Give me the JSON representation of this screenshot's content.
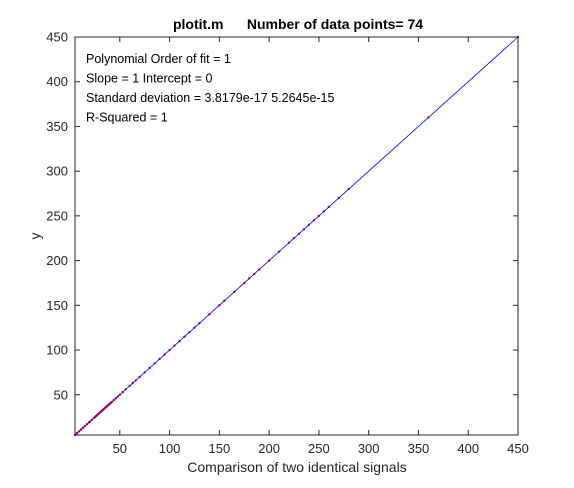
{
  "chart_data": {
    "type": "scatter",
    "title": "plotit.m      Number of data points= 74",
    "xlabel": "Comparison of two identical signals",
    "ylabel": "y",
    "xlim": [
      5,
      450
    ],
    "ylim": [
      5,
      450
    ],
    "xticks": [
      50,
      100,
      150,
      200,
      250,
      300,
      350,
      400,
      450
    ],
    "yticks": [
      50,
      100,
      150,
      200,
      250,
      300,
      350,
      400,
      450
    ],
    "grid": false,
    "colors": {
      "points": "#990066",
      "fit_line": "#0000ff",
      "axes": "#262626"
    },
    "annotations": [
      "Polynomial Order of fit = 1",
      "Slope = 1    Intercept = 0",
      "Standard deviation = 3.8179e-17  5.2645e-15",
      "R-Squared = 1"
    ],
    "fit": {
      "slope": 1,
      "intercept": 0,
      "from": 5,
      "to": 450
    },
    "series": [
      {
        "x": [
          5,
          7,
          9,
          11,
          13,
          15,
          17,
          19,
          20,
          22,
          24,
          25,
          26,
          27,
          28,
          29,
          30,
          31,
          32,
          33,
          34,
          35,
          36,
          37,
          38,
          39,
          40,
          41,
          42,
          44,
          46,
          48,
          50,
          53,
          56,
          60,
          63,
          66,
          70,
          75,
          80,
          85,
          90,
          95,
          100,
          105,
          110,
          115,
          120,
          125,
          130,
          140,
          150,
          155,
          165,
          175,
          180,
          185,
          190,
          200,
          210,
          220,
          225,
          230,
          235,
          240,
          245,
          250,
          255,
          260,
          270,
          280,
          360,
          450
        ],
        "y": [
          5,
          7,
          9,
          11,
          13,
          15,
          17,
          19,
          20,
          22,
          24,
          25,
          26,
          27,
          28,
          29,
          30,
          31,
          32,
          33,
          34,
          35,
          36,
          37,
          38,
          39,
          40,
          41,
          42,
          44,
          46,
          48,
          50,
          53,
          56,
          60,
          63,
          66,
          70,
          75,
          80,
          85,
          90,
          95,
          100,
          105,
          110,
          115,
          120,
          125,
          130,
          140,
          150,
          155,
          165,
          175,
          180,
          185,
          190,
          200,
          210,
          220,
          225,
          230,
          235,
          240,
          245,
          250,
          255,
          260,
          270,
          280,
          360,
          450
        ]
      }
    ]
  }
}
